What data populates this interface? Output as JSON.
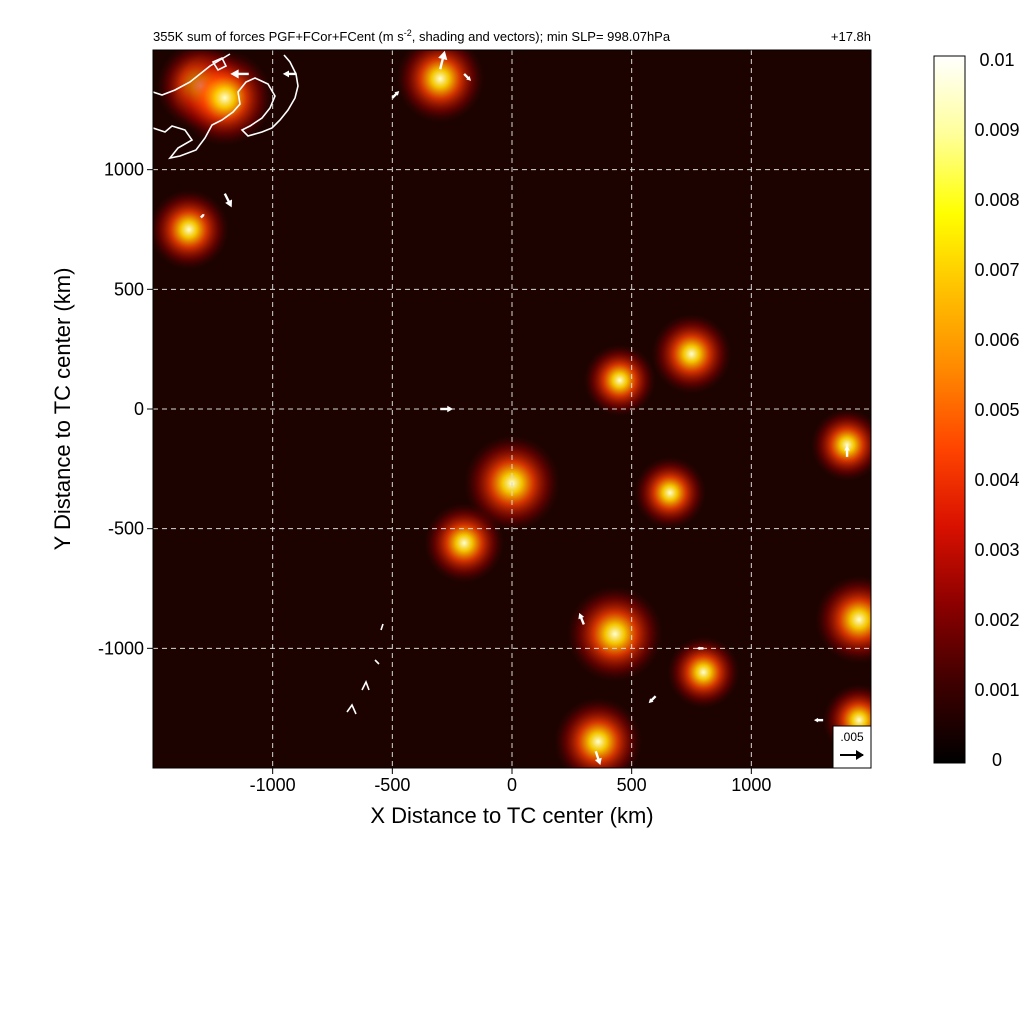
{
  "title_left_prefix": "355K sum of forces PGF+FCor+FCent (m s",
  "title_left_superscript": "-2",
  "title_left_suffix": ", shading and vectors); min SLP= 998.07hPa",
  "title_right": "+17.8h",
  "reference_vector_label": ".005",
  "chart_data": {
    "type": "heatmap",
    "title": "355K sum of forces PGF+FCor+FCent (m s-2, shading and vectors); min SLP= 998.07hPa",
    "valid_time_label": "+17.8h",
    "xlabel": "X Distance to TC center (km)",
    "ylabel": "Y Distance to TC center (km)",
    "xlim": [
      -1500,
      1500
    ],
    "ylim": [
      -1500,
      1500
    ],
    "x_ticks": [
      -1000,
      -500,
      0,
      500,
      1000
    ],
    "x_tick_labels": [
      "-1000",
      "-500",
      "0",
      "500",
      "1000"
    ],
    "y_ticks": [
      -1000,
      -500,
      0,
      500,
      1000
    ],
    "y_tick_labels": [
      "-1000",
      "-500",
      "0",
      "500",
      "1000"
    ],
    "grid": true,
    "grid_style": "dashed white",
    "colorbar": {
      "min": 0,
      "max": 0.01,
      "ticks": [
        0,
        0.001,
        0.002,
        0.003,
        0.004,
        0.005,
        0.006,
        0.007,
        0.008,
        0.009,
        0.01
      ],
      "tick_labels": [
        "0",
        "0.001",
        "0.002",
        "0.003",
        "0.004",
        "0.005",
        "0.006",
        "0.007",
        "0.008",
        "0.009",
        "0.01"
      ],
      "colormap": [
        "#000000",
        "#3d0000",
        "#8b0000",
        "#d81000",
        "#ff4400",
        "#ff8800",
        "#ffc000",
        "#ffff00",
        "#ffff9a",
        "#ffffff"
      ]
    },
    "reference_vector": {
      "magnitude": 0.005,
      "label": ".005"
    },
    "hotspots": [
      {
        "x": -1300,
        "y": 1350,
        "value": 0.006
      },
      {
        "x": -1200,
        "y": 1300,
        "value": 0.007
      },
      {
        "x": -300,
        "y": 1380,
        "value": 0.006
      },
      {
        "x": -1350,
        "y": 750,
        "value": 0.005
      },
      {
        "x": 0,
        "y": -310,
        "value": 0.007
      },
      {
        "x": -200,
        "y": -560,
        "value": 0.005
      },
      {
        "x": 430,
        "y": -940,
        "value": 0.007
      },
      {
        "x": 360,
        "y": -1390,
        "value": 0.006
      },
      {
        "x": 750,
        "y": 230,
        "value": 0.005
      },
      {
        "x": 450,
        "y": 120,
        "value": 0.004
      },
      {
        "x": 1450,
        "y": -880,
        "value": 0.006
      },
      {
        "x": 1450,
        "y": -1300,
        "value": 0.004
      },
      {
        "x": 1400,
        "y": -150,
        "value": 0.004
      },
      {
        "x": 660,
        "y": -350,
        "value": 0.004
      },
      {
        "x": 800,
        "y": -1100,
        "value": 0.004
      }
    ],
    "vectors": [
      {
        "x": -1100,
        "y": 1400,
        "u": -0.004,
        "v": 0.0
      },
      {
        "x": -900,
        "y": 1400,
        "u": -0.003,
        "v": 0.0
      },
      {
        "x": -300,
        "y": 1420,
        "u": 0.001,
        "v": 0.004
      },
      {
        "x": -200,
        "y": 1400,
        "u": 0.0015,
        "v": -0.0015
      },
      {
        "x": -500,
        "y": 1300,
        "u": 0.0015,
        "v": 0.0015
      },
      {
        "x": -1200,
        "y": 900,
        "u": 0.0015,
        "v": -0.003
      },
      {
        "x": -1300,
        "y": 800,
        "u": 0.0008,
        "v": 0.0008
      },
      {
        "x": -300,
        "y": 0,
        "u": 0.0028,
        "v": 0.0
      },
      {
        "x": 1400,
        "y": -200,
        "u": 0.0,
        "v": 0.0025
      },
      {
        "x": 300,
        "y": -900,
        "u": -0.001,
        "v": 0.0025
      },
      {
        "x": 350,
        "y": -1430,
        "u": 0.001,
        "v": -0.003
      },
      {
        "x": 600,
        "y": -1200,
        "u": -0.0015,
        "v": -0.0015
      },
      {
        "x": 1300,
        "y": -1300,
        "u": -0.002,
        "v": 0.0
      },
      {
        "x": 800,
        "y": -1000,
        "u": -0.0015,
        "v": 0.0
      }
    ],
    "coastlines": "white outlines in upper-left corner of domain"
  }
}
